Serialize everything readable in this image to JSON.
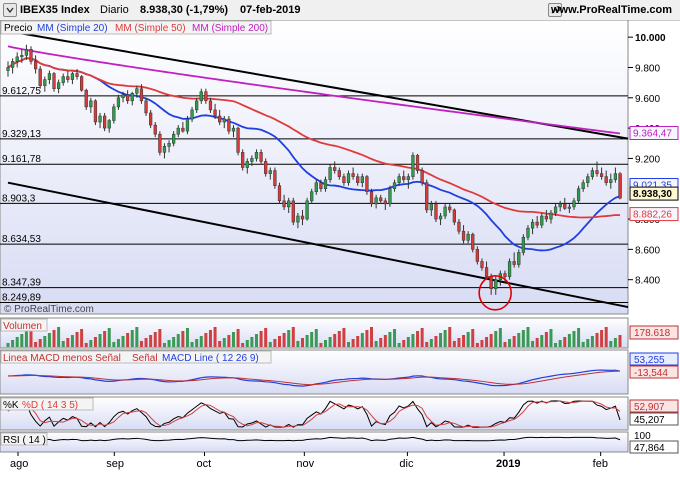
{
  "header": {
    "instrument": "IBEX35 Index",
    "period": "Diario",
    "quote": "8.938,30 (-1,79%)",
    "date": "07-feb-2019",
    "site": "www.ProRealTime.com",
    "watermark": "© ProRealTime.com"
  },
  "colors": {
    "ma20": "#1f3fe0",
    "ma50": "#e03a3a",
    "ma200": "#c020c0",
    "candle_up": "#2e9e4a",
    "candle_down": "#d83a3a",
    "price_tag": "#e03030"
  },
  "price_panel": {
    "legend": [
      "Precio",
      "MM (Simple 20)",
      "MM (Simple 50)",
      "MM (Simple 200)"
    ],
    "levels": [
      {
        "label": "9.612,75",
        "value": 9612.75
      },
      {
        "label": "9.329,13",
        "value": 9329.13
      },
      {
        "label": "9.161,78",
        "value": 9161.78
      },
      {
        "label": "8.903,3",
        "value": 8903.3
      },
      {
        "label": "8.634,53",
        "value": 8634.53
      },
      {
        "label": "8.347,39",
        "value": 8347.39
      },
      {
        "label": "8.249,89",
        "value": 8249.89
      }
    ],
    "y_ticks": [
      {
        "label": "10.000",
        "value": 10000
      },
      {
        "label": "9.800",
        "value": 9800
      },
      {
        "label": "9.600",
        "value": 9600
      },
      {
        "label": "9.400",
        "value": 9400
      },
      {
        "label": "9.200",
        "value": 9200
      },
      {
        "label": "8.800",
        "value": 8800
      },
      {
        "label": "8.600",
        "value": 8600
      },
      {
        "label": "8.400",
        "value": 8400
      }
    ],
    "tags": [
      {
        "label": "9.364,47",
        "value": 9364.47,
        "color": "#c020c0"
      },
      {
        "label": "9.021,35",
        "value": 9021.35,
        "color": "#1f3fe0"
      },
      {
        "label": "8.938,30",
        "value": 8938.3,
        "color": "#000000"
      },
      {
        "label": "8.882,26",
        "value": 8882.26,
        "color": "#e03a3a"
      }
    ]
  },
  "volume_panel": {
    "legend": "Volumen",
    "tag": "178.618"
  },
  "macd_panel": {
    "legend": [
      "Linea MACD menos Señal",
      "Señal",
      "MACD Line ( 12 26 9)"
    ],
    "tags": [
      "53,255",
      "-13,544"
    ]
  },
  "stoch_panel": {
    "legend": [
      "%K",
      "%D ( 14 3 5)"
    ],
    "tags": [
      "52,907",
      "45,207"
    ]
  },
  "rsi_panel": {
    "legend": "RSI ( 14 )",
    "tags": [
      "100",
      "47,864"
    ]
  },
  "x_axis": [
    "ago",
    "sep",
    "oct",
    "nov",
    "dic",
    "2019",
    "feb"
  ],
  "chart_data": {
    "type": "candlestick",
    "title": "IBEX35 Index",
    "y_range": [
      8200,
      10100
    ],
    "x_start": "2018-08-01",
    "x_end": "2019-02-07",
    "candles": [
      [
        "2018-08-01",
        9780,
        9840,
        9740,
        9800
      ],
      [
        "2018-08-02",
        9800,
        9860,
        9760,
        9840
      ],
      [
        "2018-08-03",
        9840,
        9900,
        9800,
        9870
      ],
      [
        "2018-08-06",
        9870,
        9920,
        9830,
        9880
      ],
      [
        "2018-08-07",
        9880,
        9950,
        9850,
        9920
      ],
      [
        "2018-08-08",
        9920,
        9940,
        9820,
        9840
      ],
      [
        "2018-08-09",
        9840,
        9880,
        9760,
        9790
      ],
      [
        "2018-08-10",
        9790,
        9810,
        9660,
        9680
      ],
      [
        "2018-08-13",
        9680,
        9740,
        9640,
        9720
      ],
      [
        "2018-08-14",
        9720,
        9780,
        9690,
        9760
      ],
      [
        "2018-08-15",
        9760,
        9770,
        9640,
        9660
      ],
      [
        "2018-08-16",
        9660,
        9720,
        9630,
        9700
      ],
      [
        "2018-08-17",
        9700,
        9760,
        9680,
        9740
      ],
      [
        "2018-08-20",
        9740,
        9780,
        9700,
        9720
      ],
      [
        "2018-08-21",
        9720,
        9770,
        9690,
        9760
      ],
      [
        "2018-08-22",
        9760,
        9790,
        9720,
        9740
      ],
      [
        "2018-08-23",
        9740,
        9750,
        9640,
        9650
      ],
      [
        "2018-08-24",
        9650,
        9660,
        9520,
        9540
      ],
      [
        "2018-08-27",
        9540,
        9600,
        9500,
        9580
      ],
      [
        "2018-08-28",
        9580,
        9590,
        9420,
        9440
      ],
      [
        "2018-08-29",
        9440,
        9500,
        9400,
        9480
      ],
      [
        "2018-08-30",
        9480,
        9500,
        9380,
        9400
      ],
      [
        "2018-08-31",
        9400,
        9460,
        9370,
        9450
      ],
      [
        "2018-09-03",
        9450,
        9560,
        9430,
        9540
      ],
      [
        "2018-09-04",
        9540,
        9620,
        9520,
        9600
      ],
      [
        "2018-09-05",
        9600,
        9640,
        9570,
        9620
      ],
      [
        "2018-09-06",
        9620,
        9650,
        9560,
        9580
      ],
      [
        "2018-09-07",
        9580,
        9640,
        9550,
        9630
      ],
      [
        "2018-09-10",
        9630,
        9680,
        9600,
        9660
      ],
      [
        "2018-09-11",
        9660,
        9690,
        9560,
        9580
      ],
      [
        "2018-09-12",
        9580,
        9600,
        9480,
        9500
      ],
      [
        "2018-09-13",
        9500,
        9520,
        9400,
        9420
      ],
      [
        "2018-09-14",
        9420,
        9440,
        9340,
        9360
      ],
      [
        "2018-09-17",
        9360,
        9380,
        9220,
        9240
      ],
      [
        "2018-09-18",
        9240,
        9300,
        9200,
        9280
      ],
      [
        "2018-09-19",
        9280,
        9320,
        9240,
        9300
      ],
      [
        "2018-09-20",
        9300,
        9380,
        9280,
        9360
      ],
      [
        "2018-09-21",
        9360,
        9420,
        9340,
        9400
      ],
      [
        "2018-09-24",
        9400,
        9440,
        9370,
        9380
      ],
      [
        "2018-09-25",
        9380,
        9480,
        9360,
        9460
      ],
      [
        "2018-09-26",
        9460,
        9540,
        9440,
        9520
      ],
      [
        "2018-09-27",
        9520,
        9600,
        9500,
        9580
      ],
      [
        "2018-09-28",
        9580,
        9660,
        9560,
        9640
      ],
      [
        "2018-10-01",
        9640,
        9660,
        9560,
        9580
      ],
      [
        "2018-10-02",
        9580,
        9600,
        9500,
        9520
      ],
      [
        "2018-10-03",
        9520,
        9560,
        9460,
        9480
      ],
      [
        "2018-10-04",
        9480,
        9520,
        9420,
        9440
      ],
      [
        "2018-10-05",
        9440,
        9480,
        9400,
        9460
      ],
      [
        "2018-10-08",
        9460,
        9480,
        9360,
        9380
      ],
      [
        "2018-10-09",
        9380,
        9420,
        9340,
        9400
      ],
      [
        "2018-10-10",
        9400,
        9410,
        9220,
        9240
      ],
      [
        "2018-10-11",
        9240,
        9260,
        9120,
        9140
      ],
      [
        "2018-10-12",
        9140,
        9200,
        9100,
        9180
      ],
      [
        "2018-10-15",
        9180,
        9220,
        9150,
        9200
      ],
      [
        "2018-10-16",
        9200,
        9260,
        9180,
        9240
      ],
      [
        "2018-10-17",
        9240,
        9260,
        9160,
        9180
      ],
      [
        "2018-10-18",
        9180,
        9200,
        9080,
        9100
      ],
      [
        "2018-10-19",
        9100,
        9140,
        9060,
        9120
      ],
      [
        "2018-10-22",
        9120,
        9140,
        9000,
        9020
      ],
      [
        "2018-10-23",
        9020,
        9040,
        8900,
        8920
      ],
      [
        "2018-10-24",
        8920,
        8960,
        8860,
        8880
      ],
      [
        "2018-10-25",
        8880,
        8940,
        8840,
        8920
      ],
      [
        "2018-10-26",
        8920,
        8940,
        8760,
        8780
      ],
      [
        "2018-10-29",
        8780,
        8840,
        8740,
        8820
      ],
      [
        "2018-10-30",
        8820,
        8860,
        8760,
        8800
      ],
      [
        "2018-10-31",
        8800,
        8940,
        8790,
        8920
      ],
      [
        "2018-11-01",
        8920,
        9000,
        8900,
        8980
      ],
      [
        "2018-11-02",
        8980,
        9060,
        8960,
        9040
      ],
      [
        "2018-11-05",
        9040,
        9060,
        8980,
        9000
      ],
      [
        "2018-11-06",
        9000,
        9080,
        8980,
        9060
      ],
      [
        "2018-11-07",
        9060,
        9160,
        9040,
        9140
      ],
      [
        "2018-11-08",
        9140,
        9180,
        9100,
        9120
      ],
      [
        "2018-11-09",
        9120,
        9140,
        9060,
        9080
      ],
      [
        "2018-11-12",
        9080,
        9100,
        9020,
        9040
      ],
      [
        "2018-11-13",
        9040,
        9120,
        9020,
        9100
      ],
      [
        "2018-11-14",
        9100,
        9140,
        9060,
        9080
      ],
      [
        "2018-11-15",
        9080,
        9100,
        9020,
        9040
      ],
      [
        "2018-11-16",
        9040,
        9100,
        9010,
        9080
      ],
      [
        "2018-11-19",
        9080,
        9090,
        8960,
        8980
      ],
      [
        "2018-11-20",
        8980,
        9000,
        8880,
        8900
      ],
      [
        "2018-11-21",
        8900,
        8960,
        8870,
        8940
      ],
      [
        "2018-11-22",
        8940,
        8960,
        8900,
        8920
      ],
      [
        "2018-11-23",
        8920,
        8940,
        8860,
        8900
      ],
      [
        "2018-11-26",
        8900,
        9020,
        8880,
        9000
      ],
      [
        "2018-11-27",
        9000,
        9060,
        8980,
        9040
      ],
      [
        "2018-11-28",
        9040,
        9100,
        9020,
        9080
      ],
      [
        "2018-11-29",
        9080,
        9120,
        9040,
        9060
      ],
      [
        "2018-11-30",
        9060,
        9100,
        9000,
        9080
      ],
      [
        "2018-12-03",
        9080,
        9240,
        9060,
        9220
      ],
      [
        "2018-12-04",
        9220,
        9230,
        9100,
        9120
      ],
      [
        "2018-12-05",
        9120,
        9140,
        9020,
        9040
      ],
      [
        "2018-12-06",
        9040,
        9060,
        8840,
        8860
      ],
      [
        "2018-12-07",
        8860,
        8920,
        8820,
        8900
      ],
      [
        "2018-12-10",
        8900,
        8920,
        8780,
        8800
      ],
      [
        "2018-12-11",
        8800,
        8840,
        8760,
        8820
      ],
      [
        "2018-12-12",
        8820,
        8900,
        8800,
        8880
      ],
      [
        "2018-12-13",
        8880,
        8900,
        8840,
        8860
      ],
      [
        "2018-12-14",
        8860,
        8870,
        8760,
        8780
      ],
      [
        "2018-12-17",
        8780,
        8800,
        8700,
        8720
      ],
      [
        "2018-12-18",
        8720,
        8760,
        8640,
        8660
      ],
      [
        "2018-12-19",
        8660,
        8720,
        8640,
        8700
      ],
      [
        "2018-12-20",
        8700,
        8710,
        8580,
        8600
      ],
      [
        "2018-12-21",
        8600,
        8620,
        8500,
        8520
      ],
      [
        "2018-12-24",
        8520,
        8540,
        8460,
        8480
      ],
      [
        "2018-12-26",
        8480,
        8520,
        8400,
        8420
      ],
      [
        "2018-12-27",
        8420,
        8440,
        8300,
        8340
      ],
      [
        "2018-12-28",
        8340,
        8420,
        8300,
        8400
      ],
      [
        "2019-01-02",
        8400,
        8460,
        8360,
        8440
      ],
      [
        "2019-01-03",
        8440,
        8460,
        8380,
        8420
      ],
      [
        "2019-01-04",
        8420,
        8540,
        8400,
        8520
      ],
      [
        "2019-01-07",
        8520,
        8580,
        8480,
        8500
      ],
      [
        "2019-01-08",
        8500,
        8600,
        8480,
        8580
      ],
      [
        "2019-01-09",
        8580,
        8700,
        8560,
        8680
      ],
      [
        "2019-01-10",
        8680,
        8760,
        8660,
        8740
      ],
      [
        "2019-01-11",
        8740,
        8800,
        8700,
        8780
      ],
      [
        "2019-01-14",
        8780,
        8820,
        8740,
        8760
      ],
      [
        "2019-01-15",
        8760,
        8840,
        8740,
        8820
      ],
      [
        "2019-01-16",
        8820,
        8860,
        8780,
        8800
      ],
      [
        "2019-01-17",
        8800,
        8860,
        8770,
        8840
      ],
      [
        "2019-01-18",
        8840,
        8900,
        8820,
        8880
      ],
      [
        "2019-01-21",
        8880,
        8920,
        8850,
        8900
      ],
      [
        "2019-01-22",
        8900,
        8940,
        8860,
        8870
      ],
      [
        "2019-01-23",
        8870,
        8900,
        8840,
        8880
      ],
      [
        "2019-01-24",
        8880,
        8940,
        8860,
        8920
      ],
      [
        "2019-01-25",
        8920,
        9020,
        8900,
        9000
      ],
      [
        "2019-01-28",
        9000,
        9060,
        8980,
        9040
      ],
      [
        "2019-01-29",
        9040,
        9100,
        9010,
        9080
      ],
      [
        "2019-01-30",
        9080,
        9140,
        9060,
        9120
      ],
      [
        "2019-01-31",
        9120,
        9180,
        9080,
        9100
      ],
      [
        "2019-02-01",
        9100,
        9140,
        9060,
        9080
      ],
      [
        "2019-02-04",
        9080,
        9120,
        9020,
        9040
      ],
      [
        "2019-02-05",
        9040,
        9100,
        9000,
        9060
      ],
      [
        "2019-02-06",
        9060,
        9140,
        9040,
        9100
      ],
      [
        "2019-02-07",
        9100,
        9110,
        8930,
        8938.3
      ]
    ],
    "ma20_last": 9021.35,
    "ma50_last": 8882.26,
    "ma200_last": 9364.47,
    "trendlines": [
      {
        "from": [
          "2018-08-01",
          10040
        ],
        "to": [
          "2019-02-07",
          9340
        ]
      },
      {
        "from": [
          "2018-08-01",
          9040
        ],
        "to": [
          "2019-02-07",
          8230
        ]
      }
    ]
  }
}
